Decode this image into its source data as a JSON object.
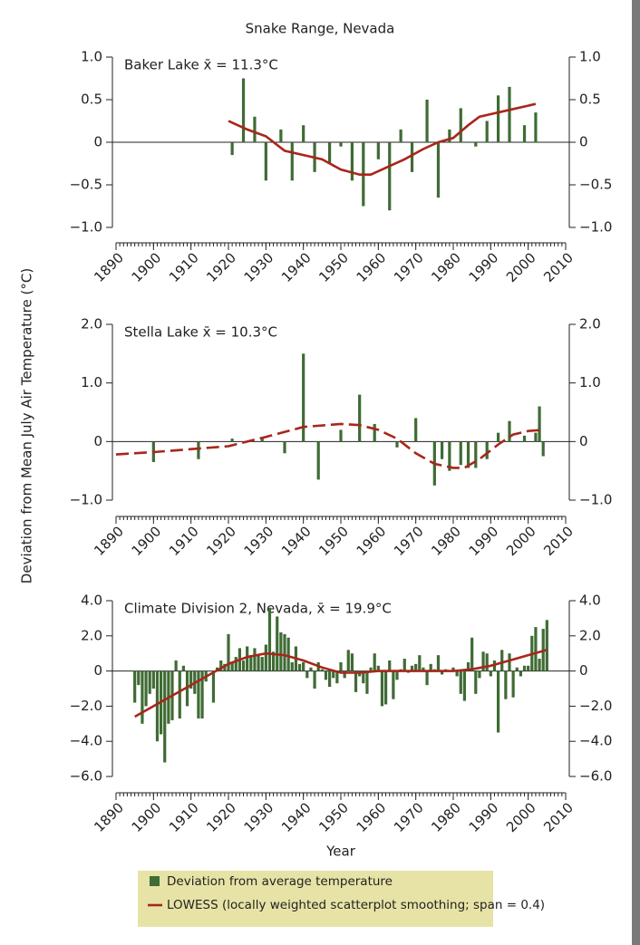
{
  "title": "Snake Range, Nevada",
  "ylabel": "Deviation from Mean July Air Temperature (°C)",
  "xlabel": "Year",
  "legend": [
    {
      "name": "Deviation from average temperature",
      "color": "#3f6b34"
    },
    {
      "name": "LOWESS (locally weighted scatterplot smoothing; span = 0.4)",
      "color": "#a8261c"
    }
  ],
  "chart_data": [
    {
      "type": "bar",
      "title": "Baker Lake x̄ = 11.3°C",
      "xlim": [
        1890,
        2010
      ],
      "xticks": [
        1890,
        1900,
        1910,
        1920,
        1930,
        1940,
        1950,
        1960,
        1970,
        1980,
        1990,
        2000,
        2010
      ],
      "ylim": [
        -1,
        1
      ],
      "yticks": [
        {
          "value": -1,
          "label": "−1.0"
        },
        {
          "value": -0.5,
          "label": "−0.5"
        },
        0,
        0.5,
        {
          "value": 1,
          "label": "1.0"
        }
      ],
      "series": [
        {
          "type": "bar",
          "color": "#3f6b34",
          "x": [
            1921,
            1924,
            1927,
            1930,
            1934,
            1937,
            1940,
            1943,
            1947,
            1950,
            1953,
            1956,
            1960,
            1963,
            1966,
            1969,
            1973,
            1976,
            1979,
            1982,
            1986,
            1989,
            1992,
            1995,
            1999,
            2002
          ],
          "values": [
            -0.15,
            0.75,
            0.3,
            -0.45,
            0.15,
            -0.45,
            0.2,
            -0.35,
            -0.25,
            -0.05,
            -0.45,
            -0.75,
            -0.2,
            -0.8,
            0.15,
            -0.35,
            0.5,
            -0.65,
            0.15,
            0.4,
            -0.05,
            0.25,
            0.55,
            0.65,
            0.2,
            0.35
          ]
        },
        {
          "type": "line",
          "color": "#a8261c",
          "dashed": false,
          "x": [
            1920,
            1925,
            1930,
            1935,
            1940,
            1945,
            1950,
            1955,
            1958,
            1962,
            1967,
            1972,
            1976,
            1980,
            1984,
            1987,
            1990,
            1995,
            2000,
            2002
          ],
          "values": [
            0.25,
            0.15,
            0.07,
            -0.1,
            -0.15,
            -0.2,
            -0.32,
            -0.38,
            -0.38,
            -0.3,
            -0.2,
            -0.08,
            0,
            0.05,
            0.2,
            0.3,
            0.33,
            0.38,
            0.43,
            0.45
          ]
        }
      ]
    },
    {
      "type": "bar",
      "title": "Stella Lake x̄ = 10.3°C",
      "xlim": [
        1890,
        2010
      ],
      "xticks": [
        1890,
        1900,
        1910,
        1920,
        1930,
        1940,
        1950,
        1960,
        1970,
        1980,
        1990,
        2000,
        2010
      ],
      "ylim": [
        -1,
        2
      ],
      "yticks": [
        {
          "value": -1,
          "label": "−1.0"
        },
        0,
        {
          "value": 1,
          "label": "1.0"
        },
        {
          "value": 2,
          "label": "2.0"
        }
      ],
      "series": [
        {
          "type": "bar",
          "color": "#3f6b34",
          "x": [
            1900,
            1912,
            1921,
            1929,
            1935,
            1940,
            1944,
            1950,
            1955,
            1959,
            1965,
            1970,
            1975,
            1977,
            1979,
            1982,
            1984,
            1986,
            1989,
            1992,
            1995,
            1999,
            2002,
            2003,
            2004
          ],
          "values": [
            -0.35,
            -0.3,
            0.05,
            0.07,
            -0.2,
            1.5,
            -0.65,
            0.2,
            0.8,
            0.3,
            -0.1,
            0.4,
            -0.75,
            -0.3,
            -0.5,
            -0.4,
            -0.45,
            -0.45,
            -0.3,
            0.15,
            0.35,
            0.1,
            0.15,
            0.6,
            -0.25
          ]
        },
        {
          "type": "line",
          "color": "#a8261c",
          "dashed": true,
          "x": [
            1890,
            1900,
            1910,
            1920,
            1930,
            1940,
            1950,
            1955,
            1960,
            1965,
            1970,
            1975,
            1980,
            1983,
            1987,
            1992,
            1996,
            2000,
            2004
          ],
          "values": [
            -0.22,
            -0.18,
            -0.13,
            -0.08,
            0.08,
            0.25,
            0.3,
            0.28,
            0.2,
            0.05,
            -0.2,
            -0.38,
            -0.45,
            -0.45,
            -0.3,
            -0.05,
            0.12,
            0.18,
            0.2
          ]
        }
      ]
    },
    {
      "type": "bar",
      "title": "Climate Division 2, Nevada, x̄ = 19.9°C",
      "xlim": [
        1890,
        2010
      ],
      "xticks": [
        1890,
        1900,
        1910,
        1920,
        1930,
        1940,
        1950,
        1960,
        1970,
        1980,
        1990,
        2000,
        2010
      ],
      "ylim": [
        -6,
        4
      ],
      "yticks": [
        {
          "value": -6,
          "label": "−6.0"
        },
        {
          "value": -4,
          "label": "−4.0"
        },
        {
          "value": -2,
          "label": "−2.0"
        },
        0,
        {
          "value": 2,
          "label": "2.0"
        },
        {
          "value": 4,
          "label": "4.0"
        }
      ],
      "series": [
        {
          "type": "bar",
          "color": "#3f6b34",
          "x": [
            1895,
            1896,
            1897,
            1898,
            1899,
            1900,
            1901,
            1902,
            1903,
            1904,
            1905,
            1906,
            1907,
            1908,
            1909,
            1910,
            1911,
            1912,
            1913,
            1914,
            1915,
            1916,
            1917,
            1918,
            1919,
            1920,
            1921,
            1922,
            1923,
            1924,
            1925,
            1926,
            1927,
            1928,
            1929,
            1930,
            1931,
            1932,
            1933,
            1934,
            1935,
            1936,
            1937,
            1938,
            1939,
            1940,
            1941,
            1942,
            1943,
            1944,
            1945,
            1946,
            1947,
            1948,
            1949,
            1950,
            1951,
            1952,
            1953,
            1954,
            1955,
            1956,
            1957,
            1958,
            1959,
            1960,
            1961,
            1962,
            1963,
            1964,
            1965,
            1966,
            1967,
            1968,
            1969,
            1970,
            1971,
            1972,
            1973,
            1974,
            1975,
            1976,
            1977,
            1978,
            1979,
            1980,
            1981,
            1982,
            1983,
            1984,
            1985,
            1986,
            1987,
            1988,
            1989,
            1990,
            1991,
            1992,
            1993,
            1994,
            1995,
            1996,
            1997,
            1998,
            1999,
            2000,
            2001,
            2002,
            2003,
            2004,
            2005
          ],
          "values": [
            -1.8,
            -0.8,
            -3.0,
            -2.0,
            -1.3,
            -1.0,
            -4.0,
            -3.6,
            -5.2,
            -3.0,
            -2.8,
            0.6,
            -2.7,
            0.3,
            -2.0,
            -1.0,
            -1.3,
            -2.7,
            -2.7,
            -0.6,
            0.0,
            -1.8,
            0.2,
            0.6,
            0.4,
            2.1,
            0.5,
            0.8,
            1.3,
            0.6,
            1.4,
            0.9,
            1.3,
            0.9,
            0.8,
            1.5,
            3.6,
            1.1,
            3.1,
            2.2,
            2.1,
            1.9,
            0.5,
            1.4,
            0.4,
            0.5,
            -0.4,
            0.2,
            -1.0,
            0.5,
            0.1,
            -0.5,
            -0.9,
            -0.4,
            -0.7,
            0.5,
            -0.4,
            1.2,
            1.0,
            -1.2,
            -0.3,
            -0.7,
            -1.3,
            0.2,
            1.0,
            0.3,
            -2.0,
            -1.9,
            0.6,
            -1.6,
            -0.5,
            0.1,
            0.7,
            -0.1,
            0.3,
            0.4,
            0.9,
            0.2,
            -0.8,
            0.4,
            0.1,
            0.9,
            -0.2,
            0.1,
            0.0,
            0.2,
            -0.3,
            -1.3,
            -1.7,
            0.5,
            1.9,
            -1.3,
            -0.4,
            1.1,
            1.0,
            -0.3,
            0.6,
            -3.5,
            1.2,
            -1.6,
            1.0,
            -1.5,
            0.2,
            -0.3,
            0.3,
            0.3,
            2.0,
            2.5,
            0.7,
            2.4,
            2.9
          ]
        },
        {
          "type": "line",
          "color": "#a8261c",
          "dashed": false,
          "x": [
            1895,
            1900,
            1905,
            1910,
            1915,
            1920,
            1925,
            1930,
            1935,
            1940,
            1945,
            1950,
            1955,
            1960,
            1965,
            1970,
            1975,
            1980,
            1985,
            1990,
            1995,
            2000,
            2005
          ],
          "values": [
            -2.6,
            -2.0,
            -1.4,
            -0.8,
            -0.2,
            0.4,
            0.8,
            1.0,
            0.9,
            0.6,
            0.2,
            -0.1,
            -0.1,
            0.0,
            0.0,
            0.0,
            0.0,
            0.0,
            0.1,
            0.3,
            0.6,
            0.9,
            1.2
          ]
        }
      ]
    }
  ]
}
